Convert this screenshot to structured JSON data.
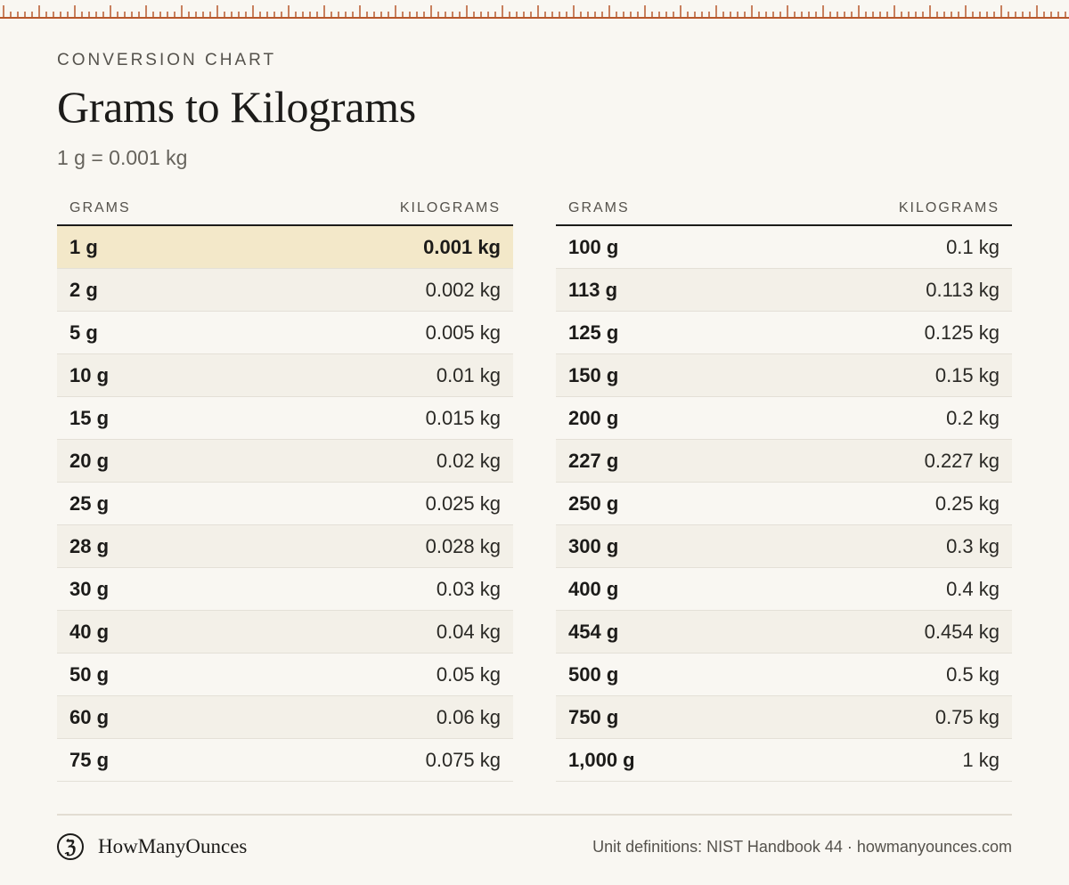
{
  "header": {
    "eyebrow": "CONVERSION CHART",
    "title": "Grams to Kilograms",
    "subtitle": "1 g = 0.001 kg"
  },
  "colors": {
    "accent": "#b7582c",
    "highlight_row": "#f3e8c9",
    "background": "#f9f7f2"
  },
  "tables": [
    {
      "headers": {
        "grams": "GRAMS",
        "kilograms": "KILOGRAMS"
      },
      "rows": [
        {
          "g": "1 g",
          "kg": "0.001 kg",
          "highlight": true
        },
        {
          "g": "2 g",
          "kg": "0.002 kg"
        },
        {
          "g": "5 g",
          "kg": "0.005 kg"
        },
        {
          "g": "10 g",
          "kg": "0.01 kg"
        },
        {
          "g": "15 g",
          "kg": "0.015 kg"
        },
        {
          "g": "20 g",
          "kg": "0.02 kg"
        },
        {
          "g": "25 g",
          "kg": "0.025 kg"
        },
        {
          "g": "28 g",
          "kg": "0.028 kg"
        },
        {
          "g": "30 g",
          "kg": "0.03 kg"
        },
        {
          "g": "40 g",
          "kg": "0.04 kg"
        },
        {
          "g": "50 g",
          "kg": "0.05 kg"
        },
        {
          "g": "60 g",
          "kg": "0.06 kg"
        },
        {
          "g": "75 g",
          "kg": "0.075 kg"
        }
      ]
    },
    {
      "headers": {
        "grams": "GRAMS",
        "kilograms": "KILOGRAMS"
      },
      "rows": [
        {
          "g": "100 g",
          "kg": "0.1 kg"
        },
        {
          "g": "113 g",
          "kg": "0.113 kg"
        },
        {
          "g": "125 g",
          "kg": "0.125 kg"
        },
        {
          "g": "150 g",
          "kg": "0.15 kg"
        },
        {
          "g": "200 g",
          "kg": "0.2 kg"
        },
        {
          "g": "227 g",
          "kg": "0.227 kg"
        },
        {
          "g": "250 g",
          "kg": "0.25 kg"
        },
        {
          "g": "300 g",
          "kg": "0.3 kg"
        },
        {
          "g": "400 g",
          "kg": "0.4 kg"
        },
        {
          "g": "454 g",
          "kg": "0.454 kg"
        },
        {
          "g": "500 g",
          "kg": "0.5 kg"
        },
        {
          "g": "750 g",
          "kg": "0.75 kg"
        },
        {
          "g": "1,000 g",
          "kg": "1 kg"
        }
      ]
    }
  ],
  "footer": {
    "brand_icon": "ounce-logo-icon",
    "brand_glyph": "ℨ",
    "brand_name": "HowManyOunces",
    "credit": "Unit definitions: NIST Handbook 44 · howmanyounces.com"
  }
}
